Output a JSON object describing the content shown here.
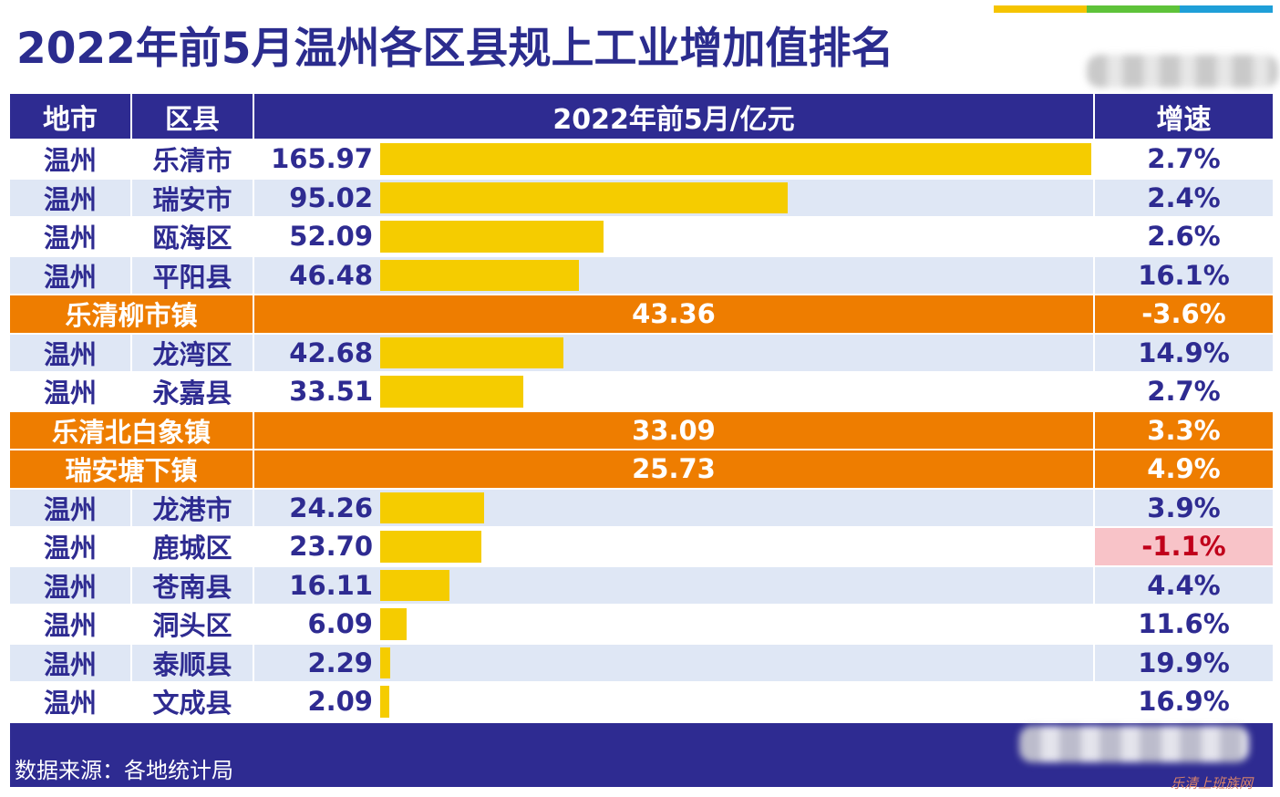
{
  "title": "2022年前5月温州各区县规上工业增加值排名",
  "header": {
    "city": "地市",
    "district": "区县",
    "value": "2022年前5月/亿元",
    "growth": "增速"
  },
  "colors": {
    "header_bg": "#2e2b91",
    "bar": "#f5cc00",
    "highlight_row": "#ee7d00",
    "row_alt": "#dfe7f5",
    "negative_bg": "#f8c3c8",
    "negative_text": "#c0001a"
  },
  "chart_data": {
    "type": "table",
    "bar_max": 165.97,
    "rows": [
      {
        "city": "温州",
        "district": "乐清市",
        "value": "165.97",
        "v": 165.97,
        "growth": "2.7%"
      },
      {
        "city": "温州",
        "district": "瑞安市",
        "value": "95.02",
        "v": 95.02,
        "growth": "2.4%"
      },
      {
        "city": "温州",
        "district": "瓯海区",
        "value": "52.09",
        "v": 52.09,
        "growth": "2.6%"
      },
      {
        "city": "温州",
        "district": "平阳县",
        "value": "46.48",
        "v": 46.48,
        "growth": "16.1%"
      },
      {
        "town": "乐清柳市镇",
        "value": "43.36",
        "v": 43.36,
        "growth": "-3.6%",
        "highlight": true
      },
      {
        "city": "温州",
        "district": "龙湾区",
        "value": "42.68",
        "v": 42.68,
        "growth": "14.9%"
      },
      {
        "city": "温州",
        "district": "永嘉县",
        "value": "33.51",
        "v": 33.51,
        "growth": "2.7%"
      },
      {
        "town": "乐清北白象镇",
        "value": "33.09",
        "v": 33.09,
        "growth": "3.3%",
        "highlight": true
      },
      {
        "town": "瑞安塘下镇",
        "value": "25.73",
        "v": 25.73,
        "growth": "4.9%",
        "highlight": true
      },
      {
        "city": "温州",
        "district": "龙港市",
        "value": "24.26",
        "v": 24.26,
        "growth": "3.9%"
      },
      {
        "city": "温州",
        "district": "鹿城区",
        "value": "23.70",
        "v": 23.7,
        "growth": "-1.1%",
        "negative": true
      },
      {
        "city": "温州",
        "district": "苍南县",
        "value": "16.11",
        "v": 16.11,
        "growth": "4.4%"
      },
      {
        "city": "温州",
        "district": "洞头区",
        "value": "6.09",
        "v": 6.09,
        "growth": "11.6%"
      },
      {
        "city": "温州",
        "district": "泰顺县",
        "value": "2.29",
        "v": 2.29,
        "growth": "19.9%"
      },
      {
        "city": "温州",
        "district": "文成县",
        "value": "2.09",
        "v": 2.09,
        "growth": "16.9%"
      }
    ]
  },
  "footer": {
    "source": "数据来源：各地统计局"
  },
  "watermark": "乐清上班族网"
}
